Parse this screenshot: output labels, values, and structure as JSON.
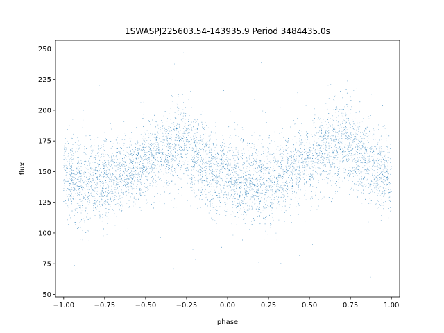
{
  "chart_data": {
    "type": "scatter",
    "title": "1SWASPJ225603.54-143935.9 Period 3484435.0s",
    "xlabel": "phase",
    "ylabel": "flux",
    "xlim": [
      -1.05,
      1.05
    ],
    "ylim": [
      48,
      257
    ],
    "xticks": [
      -1.0,
      -0.75,
      -0.5,
      -0.25,
      0.0,
      0.25,
      0.5,
      0.75,
      1.0
    ],
    "xtick_labels": [
      "−1.00",
      "−0.75",
      "−0.50",
      "−0.25",
      "0.00",
      "0.25",
      "0.50",
      "0.75",
      "1.00"
    ],
    "yticks": [
      50,
      75,
      100,
      125,
      150,
      175,
      200,
      225,
      250
    ],
    "ytick_labels": [
      "50",
      "75",
      "100",
      "125",
      "150",
      "175",
      "200",
      "225",
      "250"
    ],
    "grid": false,
    "point_color": "#1f77b4",
    "series": [
      {
        "profile": {
          "phase": [
            -1.0,
            -0.9,
            -0.8,
            -0.7,
            -0.6,
            -0.5,
            -0.4,
            -0.3,
            -0.25,
            -0.2,
            -0.1,
            0.0,
            0.1,
            0.2,
            0.3,
            0.4,
            0.5,
            0.6,
            0.7,
            0.75,
            0.8,
            0.9,
            1.0
          ],
          "median_flux": [
            148,
            140,
            142,
            146,
            150,
            156,
            166,
            172,
            171,
            165,
            152,
            145,
            139,
            141,
            146,
            151,
            157,
            167,
            173,
            172,
            166,
            153,
            148
          ],
          "scatter_half_width": [
            28,
            30,
            30,
            27,
            25,
            25,
            28,
            30,
            30,
            30,
            28,
            28,
            30,
            30,
            27,
            25,
            25,
            28,
            30,
            30,
            30,
            28,
            28
          ]
        },
        "flux_range": [
          57,
          247
        ]
      }
    ]
  }
}
